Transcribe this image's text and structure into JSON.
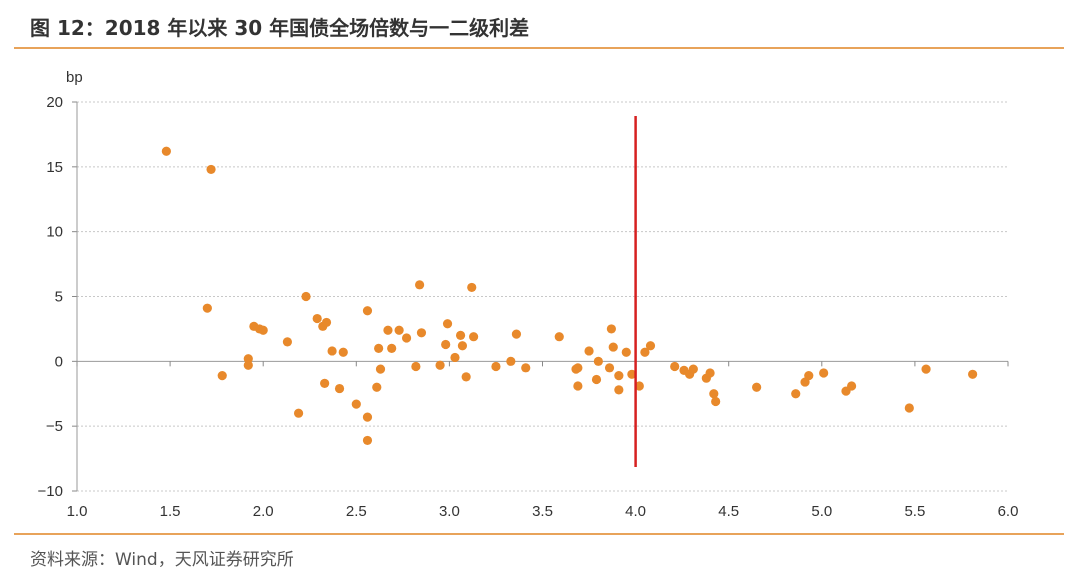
{
  "title": "图 12：2018 年以来 30 年国债全场倍数与一二级利差",
  "source": "资料来源：Wind，天风证券研究所",
  "colors": {
    "accent": "#e8a35a",
    "marker": "#e8892b",
    "reference_line": "#d62020",
    "grid": "#c8c8c8"
  },
  "chart_data": {
    "type": "scatter",
    "title": "",
    "xlabel": "",
    "ylabel": "bp",
    "xlim": [
      1.0,
      6.0
    ],
    "ylim": [
      -10,
      20
    ],
    "xticks": [
      "1.0",
      "1.5",
      "2.0",
      "2.5",
      "3.0",
      "3.5",
      "4.0",
      "4.5",
      "5.0",
      "5.5",
      "6.0"
    ],
    "yticks": [
      "20",
      "15",
      "10",
      "5",
      "0",
      "−5",
      "−10"
    ],
    "grid": "horizontal dotted",
    "reference_line_x": 4.0,
    "points": [
      [
        1.48,
        16.2
      ],
      [
        1.72,
        14.8
      ],
      [
        1.7,
        4.1
      ],
      [
        1.78,
        -1.1
      ],
      [
        1.92,
        0.2
      ],
      [
        1.92,
        -0.3
      ],
      [
        1.95,
        2.7
      ],
      [
        1.98,
        2.5
      ],
      [
        2.0,
        2.4
      ],
      [
        2.13,
        1.5
      ],
      [
        2.19,
        -4.0
      ],
      [
        2.23,
        5.0
      ],
      [
        2.29,
        3.3
      ],
      [
        2.32,
        2.7
      ],
      [
        2.34,
        3.0
      ],
      [
        2.33,
        -1.7
      ],
      [
        2.37,
        0.8
      ],
      [
        2.41,
        -2.1
      ],
      [
        2.43,
        0.7
      ],
      [
        2.5,
        -3.3
      ],
      [
        2.56,
        3.9
      ],
      [
        2.56,
        -4.3
      ],
      [
        2.56,
        -6.1
      ],
      [
        2.61,
        -2.0
      ],
      [
        2.62,
        1.0
      ],
      [
        2.63,
        -0.6
      ],
      [
        2.67,
        2.4
      ],
      [
        2.69,
        1.0
      ],
      [
        2.73,
        2.4
      ],
      [
        2.77,
        1.8
      ],
      [
        2.82,
        -0.4
      ],
      [
        2.84,
        5.9
      ],
      [
        2.85,
        2.2
      ],
      [
        2.95,
        -0.3
      ],
      [
        2.98,
        1.3
      ],
      [
        2.99,
        2.9
      ],
      [
        3.03,
        0.3
      ],
      [
        3.06,
        2.0
      ],
      [
        3.07,
        1.2
      ],
      [
        3.09,
        -1.2
      ],
      [
        3.12,
        5.7
      ],
      [
        3.13,
        1.9
      ],
      [
        3.25,
        -0.4
      ],
      [
        3.33,
        0.0
      ],
      [
        3.36,
        2.1
      ],
      [
        3.41,
        -0.5
      ],
      [
        3.59,
        1.9
      ],
      [
        3.68,
        -0.6
      ],
      [
        3.69,
        -0.5
      ],
      [
        3.69,
        -1.9
      ],
      [
        3.75,
        0.8
      ],
      [
        3.79,
        -1.4
      ],
      [
        3.8,
        0.0
      ],
      [
        3.86,
        -0.5
      ],
      [
        3.87,
        2.5
      ],
      [
        3.88,
        1.1
      ],
      [
        3.91,
        -1.1
      ],
      [
        3.91,
        -2.2
      ],
      [
        3.95,
        0.7
      ],
      [
        3.98,
        -1.0
      ],
      [
        4.02,
        -1.9
      ],
      [
        4.05,
        0.7
      ],
      [
        4.08,
        1.2
      ],
      [
        4.21,
        -0.4
      ],
      [
        4.26,
        -0.7
      ],
      [
        4.29,
        -1.0
      ],
      [
        4.31,
        -0.6
      ],
      [
        4.38,
        -1.3
      ],
      [
        4.4,
        -0.9
      ],
      [
        4.42,
        -2.5
      ],
      [
        4.43,
        -3.1
      ],
      [
        4.65,
        -2.0
      ],
      [
        4.86,
        -2.5
      ],
      [
        4.91,
        -1.6
      ],
      [
        4.93,
        -1.1
      ],
      [
        5.01,
        -0.9
      ],
      [
        5.13,
        -2.3
      ],
      [
        5.16,
        -1.9
      ],
      [
        5.47,
        -3.6
      ],
      [
        5.56,
        -0.6
      ],
      [
        5.81,
        -1.0
      ]
    ]
  }
}
